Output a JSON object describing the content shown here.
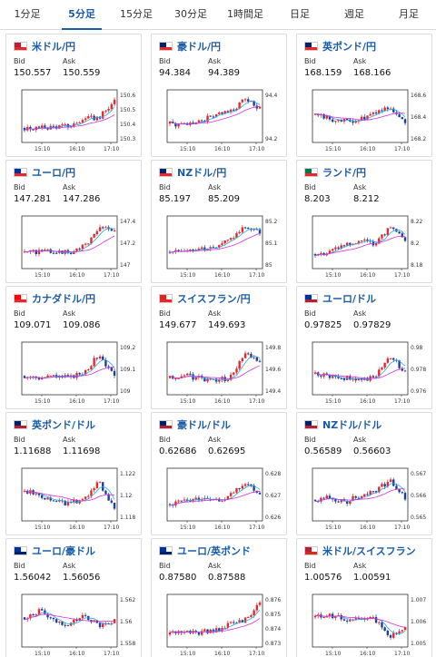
{
  "tabs": [
    {
      "label": "1分足",
      "active": false
    },
    {
      "label": "5分足",
      "active": true
    },
    {
      "label": "15分足",
      "active": false
    },
    {
      "label": "30分足",
      "active": false
    },
    {
      "label": "1時間足",
      "active": false
    },
    {
      "label": "日足",
      "active": false
    },
    {
      "label": "週足",
      "active": false
    },
    {
      "label": "月足",
      "active": false
    }
  ],
  "labels": {
    "bid": "Bid",
    "ask": "Ask"
  },
  "colors": {
    "accent": "#1a5ca8",
    "up": "#e8262b",
    "down": "#1d3f9e",
    "ma_short": "#29a8e0",
    "ma_long": "#d630d6"
  },
  "cards": [
    {
      "name": "米ドル/円",
      "flag": "us-jp-flag",
      "bid": "150.557",
      "ask": "150.559",
      "chart": {
        "x_ticks": [
          "15:10",
          "16:10",
          "17:10"
        ],
        "y_ticks": [
          "150.6",
          "150.5",
          "150.4",
          "150.3"
        ],
        "trend": [
          0.25,
          0.25,
          0.28,
          0.3,
          0.45,
          0.5,
          0.85
        ]
      }
    },
    {
      "name": "豪ドル/円",
      "flag": "au-jp-flag",
      "bid": "94.384",
      "ask": "94.389",
      "chart": {
        "x_ticks": [
          "15:10",
          "16:10",
          "17:10"
        ],
        "y_ticks": [
          "94.4",
          "94.2"
        ],
        "trend": [
          0.35,
          0.3,
          0.4,
          0.55,
          0.6,
          0.9,
          0.7
        ]
      }
    },
    {
      "name": "英ポンド/円",
      "flag": "gb-jp-flag",
      "bid": "168.159",
      "ask": "168.166",
      "chart": {
        "x_ticks": [
          "15:10",
          "16:10",
          "17:10"
        ],
        "y_ticks": [
          "168.6",
          "168.4",
          "168.2"
        ],
        "trend": [
          0.55,
          0.45,
          0.4,
          0.45,
          0.6,
          0.75,
          0.35
        ]
      }
    },
    {
      "name": "ユーロ/円",
      "flag": "eu-jp-flag",
      "bid": "147.281",
      "ask": "147.286",
      "chart": {
        "x_ticks": [
          "15:10",
          "16:10",
          "17:10"
        ],
        "y_ticks": [
          "147.4",
          "147.2",
          "147"
        ],
        "trend": [
          0.3,
          0.3,
          0.32,
          0.28,
          0.45,
          0.85,
          0.8
        ]
      }
    },
    {
      "name": "NZドル/円",
      "flag": "nz-jp-flag",
      "bid": "85.197",
      "ask": "85.209",
      "chart": {
        "x_ticks": [
          "15:10",
          "16:10",
          "17:10"
        ],
        "y_ticks": [
          "85.2",
          "85.1",
          "85"
        ],
        "trend": [
          0.3,
          0.35,
          0.4,
          0.4,
          0.55,
          0.9,
          0.75
        ]
      }
    },
    {
      "name": "ランド/円",
      "flag": "za-jp-flag",
      "bid": "8.203",
      "ask": "8.212",
      "chart": {
        "x_ticks": [
          "15:10",
          "16:10",
          "17:10"
        ],
        "y_ticks": [
          "8.22",
          "8.2",
          "8.18"
        ],
        "trend": [
          0.25,
          0.3,
          0.45,
          0.55,
          0.5,
          0.85,
          0.6
        ]
      }
    },
    {
      "name": "カナダドル/円",
      "flag": "ca-jp-flag",
      "bid": "109.071",
      "ask": "109.086",
      "chart": {
        "x_ticks": [
          "15:10",
          "16:10",
          "17:10"
        ],
        "y_ticks": [
          "109.2",
          "109.1",
          "109"
        ],
        "trend": [
          0.35,
          0.3,
          0.35,
          0.3,
          0.45,
          0.85,
          0.3
        ]
      }
    },
    {
      "name": "スイスフラン/円",
      "flag": "ch-jp-flag",
      "bid": "149.677",
      "ask": "149.693",
      "chart": {
        "x_ticks": [
          "15:10",
          "16:10",
          "17:10"
        ],
        "y_ticks": [
          "149.8",
          "149.6",
          "149.4"
        ],
        "trend": [
          0.3,
          0.35,
          0.3,
          0.25,
          0.3,
          0.85,
          0.65
        ]
      }
    },
    {
      "name": "ユーロ/ドル",
      "flag": "eu-us-flag",
      "bid": "0.97825",
      "ask": "0.97829",
      "chart": {
        "x_ticks": [
          "15:10",
          "16:10",
          "17:10"
        ],
        "y_ticks": [
          "0.98",
          "0.978",
          "0.976"
        ],
        "trend": [
          0.4,
          0.35,
          0.3,
          0.25,
          0.35,
          0.8,
          0.45
        ]
      }
    },
    {
      "name": "英ポンド/ドル",
      "flag": "gb-us-flag",
      "bid": "1.11688",
      "ask": "1.11698",
      "chart": {
        "x_ticks": [
          "15:10",
          "16:10",
          "17:10"
        ],
        "y_ticks": [
          "1.122",
          "1.12",
          "1.118"
        ],
        "trend": [
          0.6,
          0.5,
          0.4,
          0.3,
          0.45,
          0.8,
          0.2
        ]
      }
    },
    {
      "name": "豪ドル/ドル",
      "flag": "au-us-flag",
      "bid": "0.62686",
      "ask": "0.62695",
      "chart": {
        "x_ticks": [
          "15:10",
          "16:10",
          "17:10"
        ],
        "y_ticks": [
          "0.628",
          "0.627",
          "0.626"
        ],
        "trend": [
          0.3,
          0.35,
          0.4,
          0.35,
          0.5,
          0.8,
          0.55
        ]
      }
    },
    {
      "name": "NZドル/ドル",
      "flag": "nz-us-flag",
      "bid": "0.56589",
      "ask": "0.56603",
      "chart": {
        "x_ticks": [
          "15:10",
          "16:10",
          "17:10"
        ],
        "y_ticks": [
          "0.567",
          "0.566",
          "0.565"
        ],
        "trend": [
          0.4,
          0.45,
          0.35,
          0.5,
          0.6,
          0.85,
          0.45
        ]
      }
    },
    {
      "name": "ユーロ/豪ドル",
      "flag": "eu-au-flag",
      "bid": "1.56042",
      "ask": "1.56056",
      "chart": {
        "x_ticks": [
          "15:10",
          "16:10",
          "17:10"
        ],
        "y_ticks": [
          "1.562",
          "1.56",
          "1.558"
        ],
        "trend": [
          0.6,
          0.75,
          0.5,
          0.45,
          0.65,
          0.4,
          0.5
        ]
      }
    },
    {
      "name": "ユーロ/英ポンド",
      "flag": "eu-gb-flag",
      "bid": "0.87580",
      "ask": "0.87588",
      "chart": {
        "x_ticks": [
          "15:10",
          "16:10",
          "17:10"
        ],
        "y_ticks": [
          "0.876",
          "0.875",
          "0.874",
          "0.873"
        ],
        "trend": [
          0.2,
          0.3,
          0.25,
          0.3,
          0.45,
          0.55,
          0.9
        ]
      }
    },
    {
      "name": "米ドル/スイスフラン",
      "flag": "us-ch-flag",
      "bid": "1.00576",
      "ask": "1.00591",
      "chart": {
        "x_ticks": [
          "15:10",
          "16:10",
          "17:10"
        ],
        "y_ticks": [
          "1.007",
          "1.006",
          "1.005"
        ],
        "trend": [
          0.6,
          0.65,
          0.55,
          0.6,
          0.55,
          0.15,
          0.35
        ]
      }
    }
  ]
}
